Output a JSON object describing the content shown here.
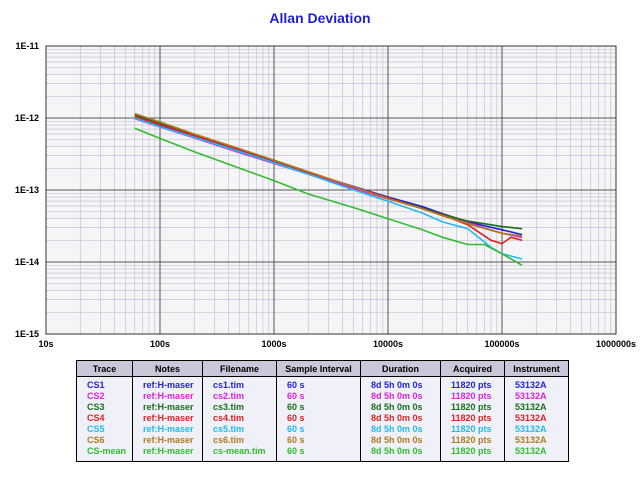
{
  "chart_data": {
    "type": "line",
    "title": "Allan Deviation",
    "x_scale": "log",
    "y_scale": "log",
    "xlim": [
      10,
      1000000
    ],
    "ylim": [
      1e-15,
      1e-11
    ],
    "grid": true,
    "x_ticks": [
      {
        "value": 10,
        "label": "10s"
      },
      {
        "value": 100,
        "label": "100s"
      },
      {
        "value": 1000,
        "label": "1000s"
      },
      {
        "value": 10000,
        "label": "10000s"
      },
      {
        "value": 100000,
        "label": "100000s"
      },
      {
        "value": 1000000,
        "label": "1000000s"
      }
    ],
    "y_ticks": [
      {
        "value": 1e-11,
        "label": "1E-11"
      },
      {
        "value": 1e-12,
        "label": "1E-12"
      },
      {
        "value": 1e-13,
        "label": "1E-13"
      },
      {
        "value": 1e-14,
        "label": "1E-14"
      },
      {
        "value": 1e-15,
        "label": "1E-15"
      }
    ],
    "series": [
      {
        "name": "CS1",
        "color": "#2222dd",
        "x": [
          60,
          100,
          200,
          500,
          1000,
          2000,
          5000,
          10000,
          20000,
          30000,
          50000,
          100000,
          150000
        ],
        "y": [
          1.02e-12,
          7.9e-13,
          5.6e-13,
          3.55e-13,
          2.5e-13,
          1.75e-13,
          1.12e-13,
          8e-14,
          5.9e-14,
          4.7e-14,
          3.6e-14,
          2.8e-14,
          2.4e-14
        ]
      },
      {
        "name": "CS2",
        "color": "#dd22dd",
        "x": [
          60,
          100,
          200,
          500,
          1000,
          2000,
          5000,
          10000,
          20000,
          30000,
          50000,
          100000,
          150000
        ],
        "y": [
          9.8e-13,
          7.5e-13,
          5.3e-13,
          3.3e-13,
          2.35e-13,
          1.65e-13,
          1.05e-13,
          7.5e-14,
          5.6e-14,
          4.5e-14,
          3.5e-14,
          2.5e-14,
          2.2e-14
        ]
      },
      {
        "name": "CS3",
        "color": "#1a6e1a",
        "x": [
          60,
          100,
          200,
          500,
          1000,
          2000,
          5000,
          10000,
          20000,
          30000,
          50000,
          100000,
          150000
        ],
        "y": [
          1.1e-12,
          8.5e-13,
          5.9e-13,
          3.7e-13,
          2.55e-13,
          1.78e-13,
          1.1e-13,
          7.8e-14,
          5.6e-14,
          4.6e-14,
          3.7e-14,
          3.1e-14,
          2.9e-14
        ]
      },
      {
        "name": "CS4",
        "color": "#dd2222",
        "x": [
          60,
          100,
          200,
          500,
          1000,
          2000,
          5000,
          10000,
          20000,
          30000,
          50000,
          80000,
          100000,
          120000,
          150000
        ],
        "y": [
          1.05e-12,
          8.1e-13,
          5.7e-13,
          3.6e-13,
          2.55e-13,
          1.75e-13,
          1.1e-13,
          7.8e-14,
          5.5e-14,
          4.5e-14,
          3.3e-14,
          2e-14,
          1.8e-14,
          2.2e-14,
          2e-14
        ]
      },
      {
        "name": "CS5",
        "color": "#22bbee",
        "x": [
          60,
          100,
          200,
          500,
          1000,
          2000,
          5000,
          10000,
          20000,
          30000,
          50000,
          80000,
          100000,
          150000
        ],
        "y": [
          1e-12,
          7.6e-13,
          5.4e-13,
          3.4e-13,
          2.4e-13,
          1.65e-13,
          1e-13,
          7e-14,
          4.8e-14,
          3.6e-14,
          2.9e-14,
          1.6e-14,
          1.3e-14,
          1.1e-14
        ]
      },
      {
        "name": "CS6",
        "color": "#b07a20",
        "x": [
          60,
          100,
          200,
          500,
          1000,
          2000,
          5000,
          10000,
          20000,
          30000,
          50000,
          100000,
          150000
        ],
        "y": [
          1.15e-12,
          8.8e-13,
          6e-13,
          3.75e-13,
          2.6e-13,
          1.8e-13,
          1.1e-13,
          7.6e-14,
          5.5e-14,
          4.4e-14,
          3.4e-14,
          2.5e-14,
          2.3e-14
        ]
      },
      {
        "name": "CS-mean",
        "color": "#33bb33",
        "x": [
          60,
          100,
          200,
          500,
          1000,
          2000,
          5000,
          10000,
          20000,
          30000,
          50000,
          70000,
          100000,
          150000
        ],
        "y": [
          7.2e-13,
          5.2e-13,
          3.4e-13,
          2e-13,
          1.35e-13,
          8.8e-14,
          5.7e-14,
          4e-14,
          2.8e-14,
          2.2e-14,
          1.75e-14,
          1.75e-14,
          1.3e-14,
          9e-15
        ]
      }
    ]
  },
  "table": {
    "headers": [
      "Trace",
      "Notes",
      "Filename",
      "Sample Interval",
      "Duration",
      "Acquired",
      "Instrument"
    ],
    "rows": [
      {
        "color": "#2222dd",
        "cells": [
          "CS1",
          "ref:H-maser",
          "cs1.tim",
          "60 s",
          "8d 5h 0m 0s",
          "11820 pts",
          "53132A"
        ]
      },
      {
        "color": "#dd22dd",
        "cells": [
          "CS2",
          "ref:H-maser",
          "cs2.tim",
          "60 s",
          "8d 5h 0m 0s",
          "11820 pts",
          "53132A"
        ]
      },
      {
        "color": "#1a6e1a",
        "cells": [
          "CS3",
          "ref:H-maser",
          "cs3.tim",
          "60 s",
          "8d 5h 0m 0s",
          "11820 pts",
          "53132A"
        ]
      },
      {
        "color": "#dd2222",
        "cells": [
          "CS4",
          "ref:H-maser",
          "cs4.tim",
          "60 s",
          "8d 5h 0m 0s",
          "11820 pts",
          "53132A"
        ]
      },
      {
        "color": "#22bbee",
        "cells": [
          "CS5",
          "ref:H-maser",
          "cs5.tim",
          "60 s",
          "8d 5h 0m 0s",
          "11820 pts",
          "53132A"
        ]
      },
      {
        "color": "#b07a20",
        "cells": [
          "CS6",
          "ref:H-maser",
          "cs6.tim",
          "60 s",
          "8d 5h 0m 0s",
          "11820 pts",
          "53132A"
        ]
      },
      {
        "color": "#33bb33",
        "cells": [
          "CS-mean",
          "ref:H-maser",
          "cs-mean.tim",
          "60 s",
          "8d 5h 0m 0s",
          "11820 pts",
          "53132A"
        ]
      }
    ]
  }
}
